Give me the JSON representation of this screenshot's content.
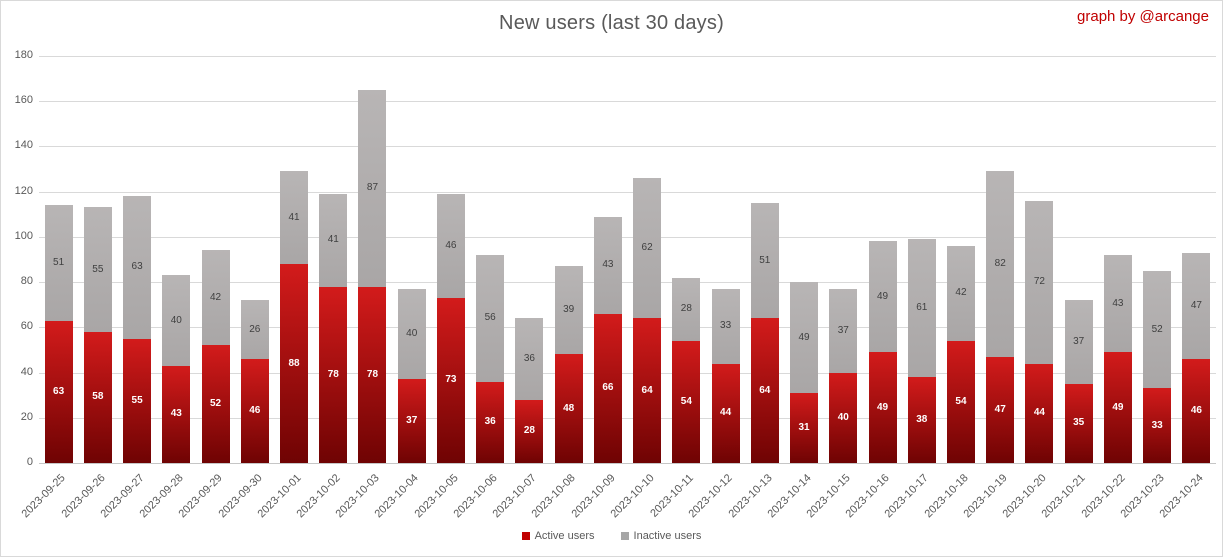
{
  "header": {
    "title": "New users (last 30 days)",
    "credit": "graph by @arcange"
  },
  "chart_data": {
    "type": "bar",
    "stacked": true,
    "title": "New users (last 30 days)",
    "categories": [
      "2023-09-25",
      "2023-09-26",
      "2023-09-27",
      "2023-09-28",
      "2023-09-29",
      "2023-09-30",
      "2023-10-01",
      "2023-10-02",
      "2023-10-03",
      "2023-10-04",
      "2023-10-05",
      "2023-10-06",
      "2023-10-07",
      "2023-10-08",
      "2023-10-09",
      "2023-10-10",
      "2023-10-11",
      "2023-10-12",
      "2023-10-13",
      "2023-10-14",
      "2023-10-15",
      "2023-10-16",
      "2023-10-17",
      "2023-10-18",
      "2023-10-19",
      "2023-10-20",
      "2023-10-21",
      "2023-10-22",
      "2023-10-23",
      "2023-10-24"
    ],
    "series": [
      {
        "name": "Active users",
        "swatch_color": "#c00000",
        "gradient_top": "#d31b1b",
        "gradient_bottom": "#6f0303",
        "label_color": "#ffffff",
        "values": [
          63,
          58,
          55,
          43,
          52,
          46,
          88,
          78,
          78,
          37,
          73,
          36,
          28,
          48,
          66,
          64,
          54,
          44,
          64,
          31,
          40,
          49,
          38,
          54,
          47,
          44,
          35,
          49,
          33,
          46
        ]
      },
      {
        "name": "Inactive users",
        "swatch_color": "#a6a6a6",
        "gradient_top": "#b8b5b5",
        "gradient_bottom": "#a9a6a6",
        "label_color": "#3f3f3f",
        "values": [
          51,
          55,
          63,
          40,
          42,
          26,
          41,
          41,
          87,
          40,
          46,
          56,
          36,
          39,
          43,
          62,
          28,
          33,
          51,
          49,
          37,
          49,
          61,
          42,
          82,
          72,
          37,
          43,
          52,
          47
        ]
      }
    ],
    "ylim": [
      0,
      180
    ],
    "yticks": [
      0,
      20,
      40,
      60,
      80,
      100,
      120,
      140,
      160,
      180
    ],
    "grid": true,
    "legend_position": "bottom",
    "xlabel": "",
    "ylabel": ""
  }
}
